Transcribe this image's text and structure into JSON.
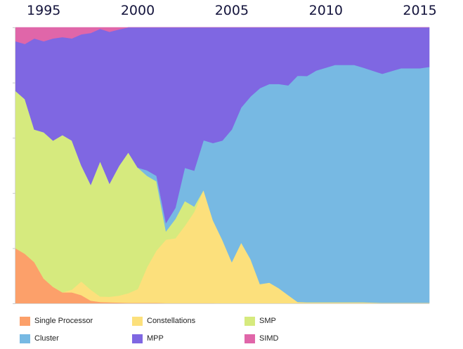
{
  "chart_data": {
    "type": "area",
    "stacked": "percent",
    "x_axis": {
      "position": "top",
      "ticks": [
        "1995",
        "2000",
        "2005",
        "2010",
        "2015"
      ]
    },
    "x": [
      1993.5,
      1994.0,
      1994.5,
      1995.0,
      1995.5,
      1996.0,
      1996.5,
      1997.0,
      1997.5,
      1998.0,
      1998.5,
      1999.0,
      1999.5,
      2000.0,
      2000.5,
      2001.0,
      2001.5,
      2002.0,
      2002.5,
      2003.0,
      2003.5,
      2004.0,
      2004.5,
      2005.0,
      2005.5,
      2006.0,
      2006.5,
      2007.0,
      2007.5,
      2008.0,
      2008.5,
      2009.0,
      2009.5,
      2010.0,
      2010.5,
      2011.0,
      2011.5,
      2012.0,
      2012.5,
      2013.0,
      2013.5,
      2014.0,
      2014.5,
      2015.0,
      2015.5
    ],
    "series": [
      {
        "name": "Single Processor",
        "color": "#fca06a",
        "values": [
          20,
          18,
          15,
          9,
          6,
          4,
          4,
          3,
          1,
          0.5,
          0.4,
          0.3,
          0.2,
          0.2,
          0.2,
          0.2,
          0.1,
          0.1,
          0.1,
          0.1,
          0.1,
          0.1,
          0,
          0,
          0,
          0,
          0,
          0,
          0,
          0,
          0,
          0,
          0,
          0,
          0,
          0,
          0,
          0,
          0,
          0,
          0,
          0,
          0,
          0,
          0
        ]
      },
      {
        "name": "Constellations",
        "color": "#fce07c",
        "values": [
          0,
          0,
          0,
          0,
          0,
          0,
          1,
          5,
          4,
          2,
          2,
          2.5,
          3.5,
          5,
          13,
          19,
          23,
          23.5,
          28,
          33,
          41,
          30,
          23,
          15,
          22,
          16,
          7,
          7.5,
          5.5,
          3,
          0.5,
          0.4,
          0.4,
          0.4,
          0.4,
          0.4,
          0.4,
          0.4,
          0.3,
          0.2,
          0.2,
          0.2,
          0.2,
          0.2,
          0.2
        ]
      },
      {
        "name": "SMP",
        "color": "#d6ea7e",
        "values": [
          57,
          56,
          48,
          53,
          53,
          57,
          54,
          42,
          38,
          49,
          41,
          47,
          51,
          44,
          33,
          25,
          3,
          7,
          9,
          2,
          0,
          0,
          0,
          0,
          0,
          0,
          0,
          0,
          0,
          0,
          0,
          0,
          0,
          0,
          0,
          0,
          0,
          0,
          0,
          0,
          0,
          0,
          0,
          0,
          0
        ]
      },
      {
        "name": "Cluster",
        "color": "#77b9e3",
        "values": [
          0,
          0,
          0,
          0,
          0,
          0,
          0,
          0,
          0,
          0,
          0,
          0,
          0,
          0,
          2,
          2,
          3,
          4,
          12,
          13,
          18,
          28,
          36,
          48,
          49,
          59,
          71,
          72,
          74,
          76,
          82,
          82,
          84,
          85,
          86,
          86,
          86,
          85,
          84,
          83,
          84,
          85,
          85,
          85,
          85.5
        ]
      },
      {
        "name": "MPP",
        "color": "#7f67e2",
        "values": [
          18,
          20,
          33,
          33,
          37,
          35.5,
          37,
          47.5,
          55,
          48,
          55,
          49.5,
          45.3,
          50.8,
          51.8,
          53.8,
          70.9,
          65.4,
          50.9,
          51.9,
          40.9,
          41.9,
          41,
          37,
          29,
          25,
          22,
          20.5,
          20.5,
          21,
          17.5,
          17.6,
          15.6,
          14.6,
          13.6,
          13.6,
          13.6,
          14.6,
          15.7,
          16.8,
          15.8,
          14.8,
          14.8,
          14.8,
          14.3
        ]
      },
      {
        "name": "SIMD",
        "color": "#e066a9",
        "values": [
          5,
          6,
          4,
          5,
          4,
          3.5,
          4,
          2.5,
          2,
          0.5,
          1.6,
          0.7,
          0,
          0,
          0,
          0,
          0,
          0,
          0,
          0,
          0,
          0,
          0,
          0,
          0,
          0,
          0,
          0,
          0,
          0,
          0,
          0,
          0,
          0,
          0,
          0,
          0,
          0,
          0,
          0,
          0,
          0,
          0,
          0,
          0
        ]
      }
    ],
    "legend": "bottom"
  }
}
